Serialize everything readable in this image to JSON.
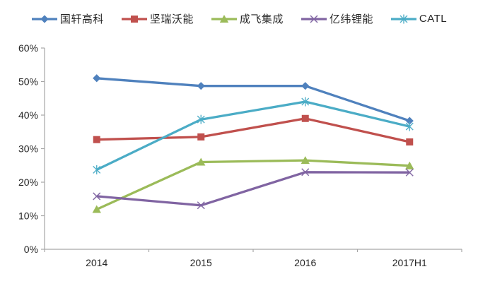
{
  "chart_data": {
    "type": "line",
    "categories": [
      "2014",
      "2015",
      "2016",
      "2017H1"
    ],
    "series": [
      {
        "name": "国轩高科",
        "marker": "diamond",
        "color": "#4F81BD",
        "values": [
          51.0,
          48.7,
          48.7,
          38.3
        ]
      },
      {
        "name": "坚瑞沃能",
        "marker": "square",
        "color": "#C0504D",
        "values": [
          32.7,
          33.5,
          39.0,
          32.0
        ]
      },
      {
        "name": "成飞集成",
        "marker": "triangle",
        "color": "#9BBB59",
        "values": [
          11.9,
          26.0,
          26.5,
          24.9
        ]
      },
      {
        "name": "亿纬锂能",
        "marker": "x",
        "color": "#8064A2",
        "values": [
          15.8,
          13.1,
          23.0,
          22.9
        ]
      },
      {
        "name": "CATL",
        "marker": "asterisk",
        "color": "#4BACC6",
        "values": [
          23.7,
          38.7,
          44.0,
          36.6
        ]
      }
    ],
    "title": "",
    "xlabel": "",
    "ylabel": "",
    "ylim": [
      0,
      60
    ],
    "ytick_step": 10,
    "ytick_labels": [
      "0%",
      "10%",
      "20%",
      "30%",
      "40%",
      "50%",
      "60%"
    ],
    "grid": false,
    "legend_position": "top",
    "axis_color": "#A6A6A6",
    "text_color": "#262626",
    "background_color": "#FFFFFF"
  }
}
